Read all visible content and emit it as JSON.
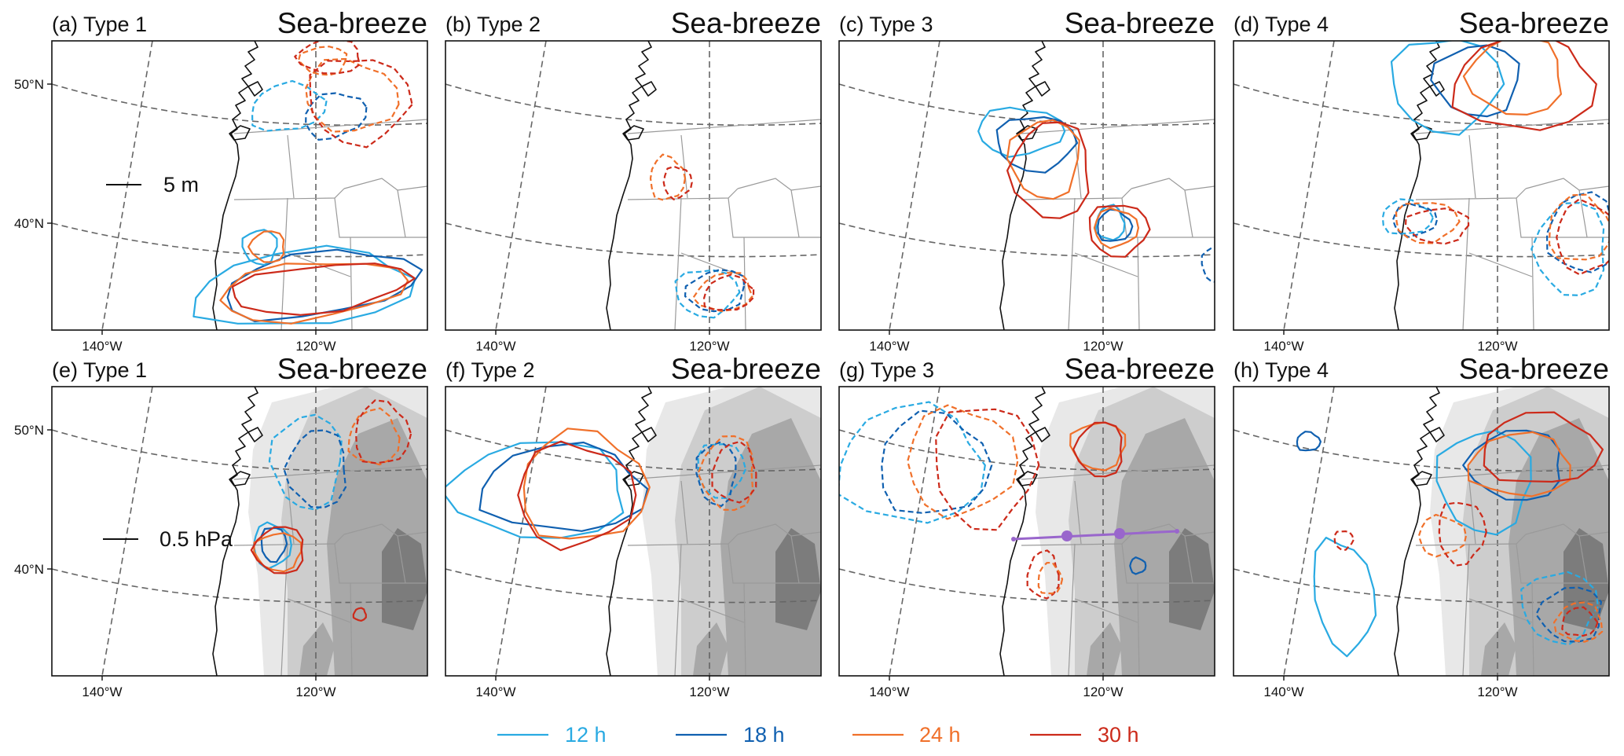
{
  "figure": {
    "panels": [
      {
        "id": "a",
        "label": "(a) Type 1",
        "title": "Sea-breeze",
        "row": 0,
        "col": 0,
        "shading": false
      },
      {
        "id": "b",
        "label": "(b) Type 2",
        "title": "Sea-breeze",
        "row": 0,
        "col": 1,
        "shading": false
      },
      {
        "id": "c",
        "label": "(c) Type 3",
        "title": "Sea-breeze",
        "row": 0,
        "col": 2,
        "shading": false
      },
      {
        "id": "d",
        "label": "(d) Type 4",
        "title": "Sea-breeze",
        "row": 0,
        "col": 3,
        "shading": false
      },
      {
        "id": "e",
        "label": "(e) Type 1",
        "title": "Sea-breeze",
        "row": 1,
        "col": 0,
        "shading": true
      },
      {
        "id": "f",
        "label": "(f) Type 2",
        "title": "Sea-breeze",
        "row": 1,
        "col": 1,
        "shading": true
      },
      {
        "id": "g",
        "label": "(g) Type 3",
        "title": "Sea-breeze",
        "row": 1,
        "col": 2,
        "shading": true
      },
      {
        "id": "h",
        "label": "(h) Type 4",
        "title": "Sea-breeze",
        "row": 1,
        "col": 3,
        "shading": true
      }
    ],
    "longitude_ticks": [
      "140°W",
      "120°W"
    ],
    "latitude_ticks": [
      "50°N",
      "40°N"
    ],
    "top_row_scale": "5 m",
    "bottom_row_scale": "0.5 hPa",
    "legend": [
      {
        "label": "12 h",
        "color": "#29aae2"
      },
      {
        "label": "18 h",
        "color": "#1060b0"
      },
      {
        "label": "24 h",
        "color": "#f0702a"
      },
      {
        "label": "30 h",
        "color": "#cc2a1a"
      }
    ],
    "cross_section_color": "#9966cc",
    "terrain_shading_colors": [
      "#e8e8e8",
      "#cdcdcd",
      "#a8a8a8",
      "#7c7c7c"
    ]
  }
}
